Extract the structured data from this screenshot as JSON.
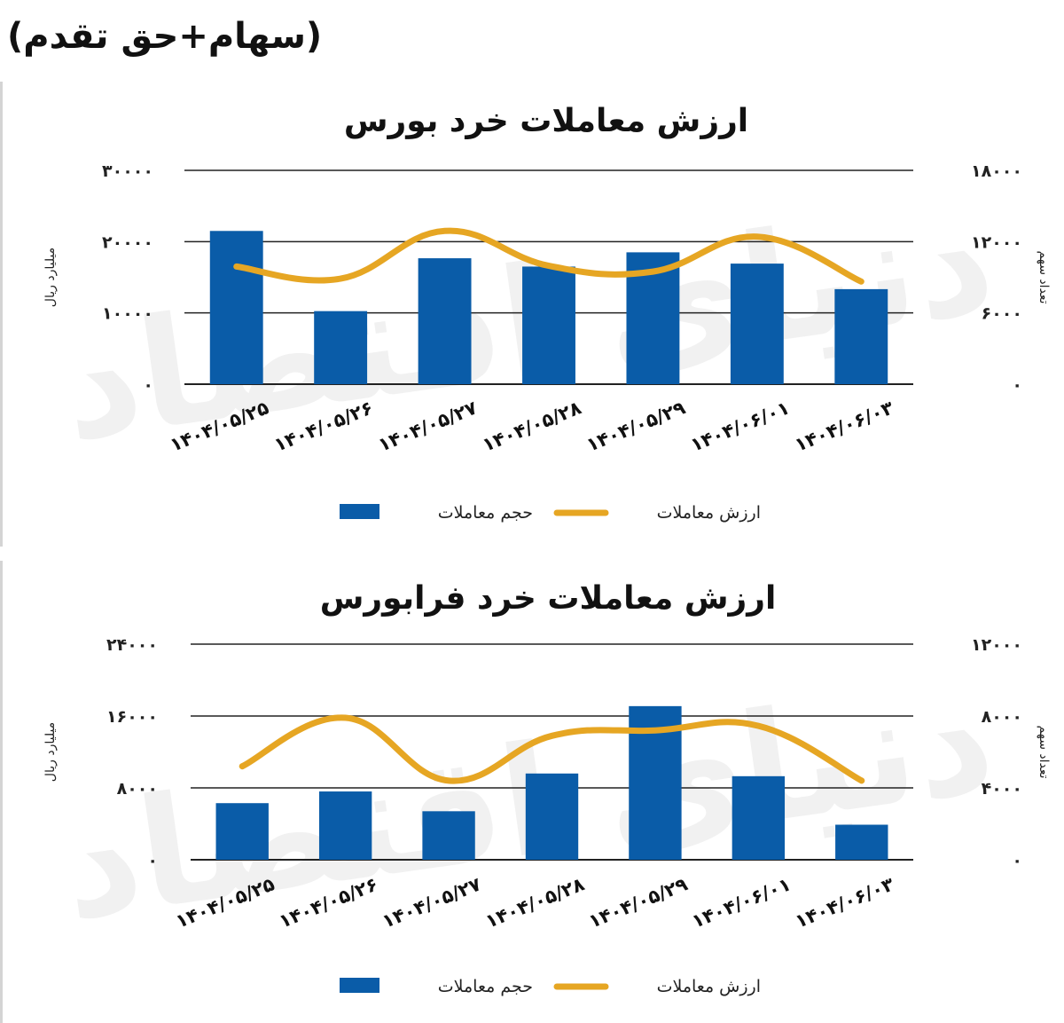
{
  "header": {
    "title": "(سهام+حق تقدم)"
  },
  "colors": {
    "bar": "#0a5ca8",
    "line": "#e6a623",
    "grid": "#222222",
    "text": "#222222"
  },
  "chart_data": [
    {
      "type": "bar",
      "title": "ارزش معاملات خرد بورس",
      "categories": [
        "۱۴۰۴/۰۵/۲۵",
        "۱۴۰۴/۰۵/۲۶",
        "۱۴۰۴/۰۵/۲۷",
        "۱۴۰۴/۰۵/۲۸",
        "۱۴۰۴/۰۵/۲۹",
        "۱۴۰۴/۰۶/۰۱",
        "۱۴۰۴/۰۶/۰۳"
      ],
      "ylabel": "میلیارد ریال",
      "y2label": "تعداد سهم",
      "ylim": [
        0,
        30000
      ],
      "y2lim": [
        0,
        18000
      ],
      "yticks": [
        "۰",
        "۱۰۰۰۰",
        "۲۰۰۰۰",
        "۳۰۰۰۰"
      ],
      "y2ticks": [
        "۰",
        "۶۰۰۰",
        "۱۲۰۰۰",
        "۱۸۰۰۰"
      ],
      "grid": true,
      "legend_position": "bottom",
      "series": [
        {
          "name": "حجم معاملات",
          "type": "bar",
          "axis": "right",
          "values": [
            12900,
            6150,
            10600,
            9900,
            11100,
            10150,
            8000
          ]
        },
        {
          "name": "ارزش معاملات",
          "type": "line",
          "axis": "left",
          "values": [
            16500,
            14800,
            21500,
            16600,
            15800,
            20700,
            14400
          ]
        }
      ]
    },
    {
      "type": "bar",
      "title": "ارزش معاملات خرد فرابورس",
      "categories": [
        "۱۴۰۴/۰۵/۲۵",
        "۱۴۰۴/۰۵/۲۶",
        "۱۴۰۴/۰۵/۲۷",
        "۱۴۰۴/۰۵/۲۸",
        "۱۴۰۴/۰۵/۲۹",
        "۱۴۰۴/۰۶/۰۱",
        "۱۴۰۴/۰۶/۰۳"
      ],
      "ylabel": "میلیارد ریال",
      "y2label": "تعداد سهم",
      "ylim": [
        0,
        24000
      ],
      "y2lim": [
        0,
        12000
      ],
      "yticks": [
        "۰",
        "۸۰۰۰",
        "۱۶۰۰۰",
        "۲۴۰۰۰"
      ],
      "y2ticks": [
        "۰",
        "۴۰۰۰",
        "۸۰۰۰",
        "۱۲۰۰۰"
      ],
      "grid": true,
      "legend_position": "bottom",
      "series": [
        {
          "name": "حجم معاملات",
          "type": "bar",
          "axis": "right",
          "values": [
            3150,
            3800,
            2700,
            4800,
            8550,
            4650,
            1950
          ]
        },
        {
          "name": "ارزش معاملات",
          "type": "line",
          "axis": "left",
          "values": [
            10400,
            15800,
            8800,
            13800,
            14400,
            14900,
            8800
          ]
        }
      ]
    }
  ],
  "watermark": {
    "text": "دنیای اقتصاد"
  }
}
